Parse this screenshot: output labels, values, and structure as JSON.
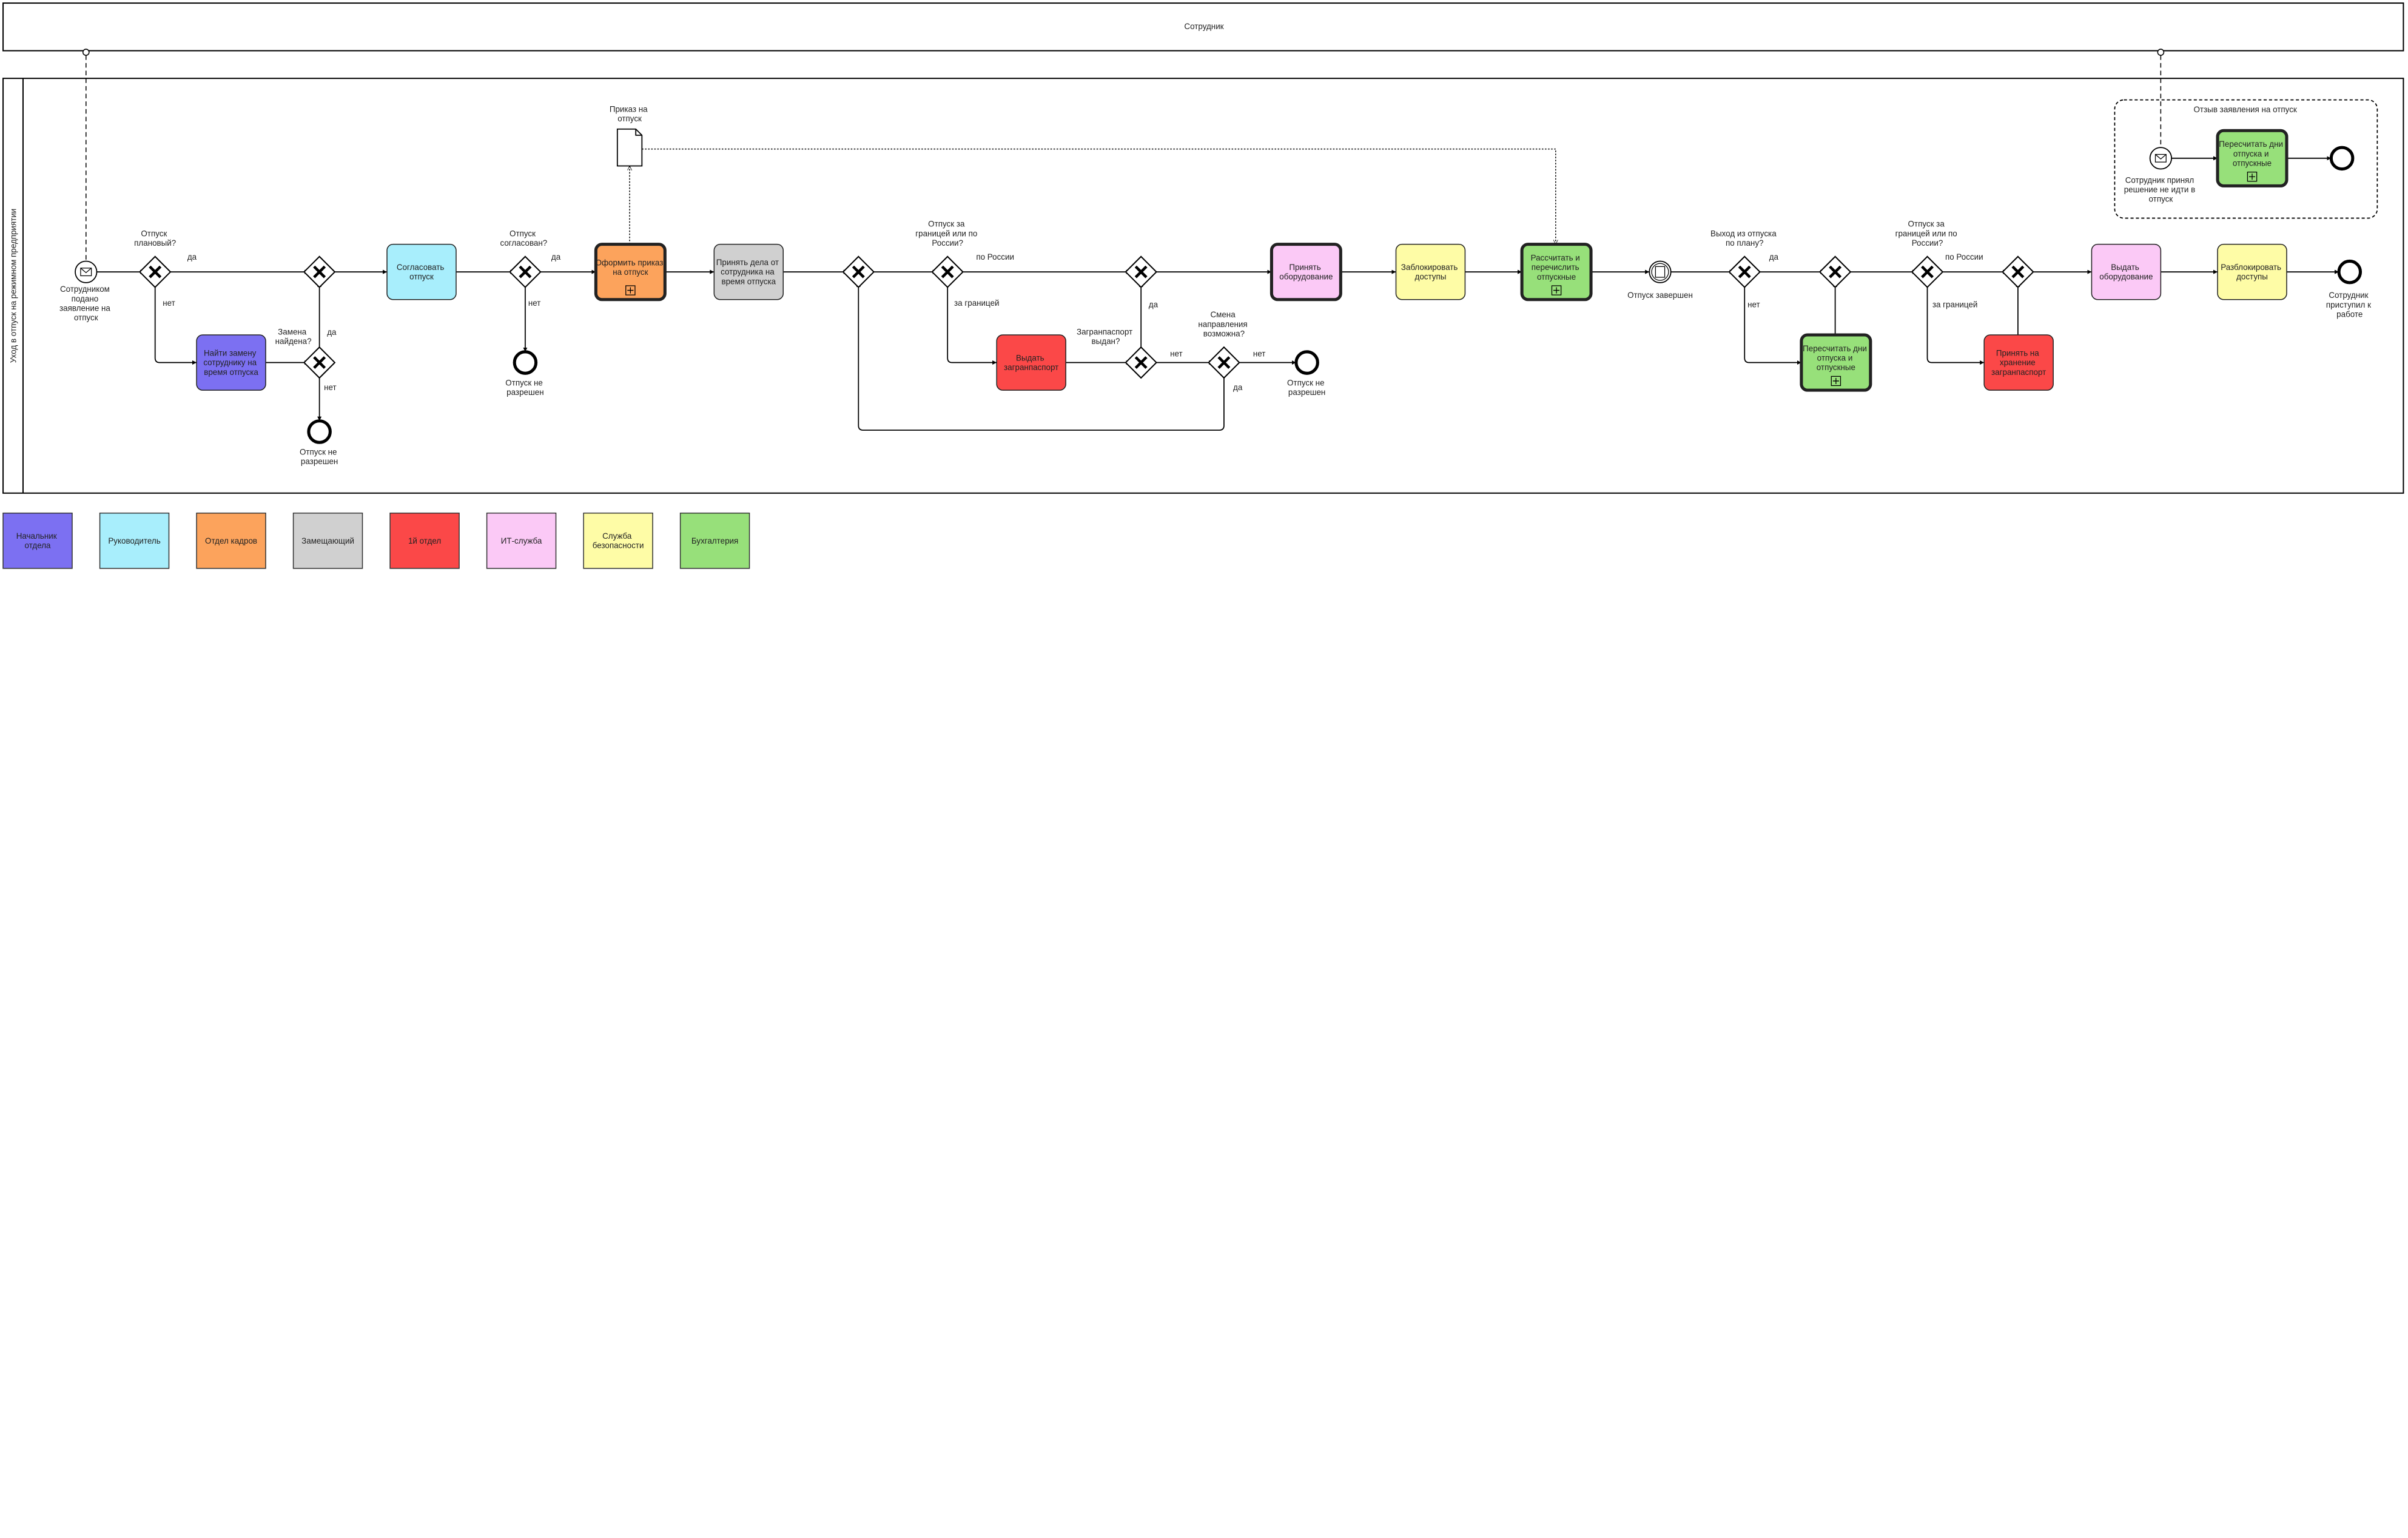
{
  "pools": {
    "top": "Сотрудник",
    "main": "Уход в отпуск на режимном предприятии"
  },
  "data_object": "Приказ на отпуск",
  "subprocess": "Отзыв заявления на отпуск",
  "tasks": [
    "Найти замену сотруднику на время отпуска",
    "Согласовать отпуск",
    "Оформить приказ на отпуск",
    "Принять дела от сотрудника на время отпуска",
    "Выдать загранпаспорт",
    "Принять оборудование",
    "Заблокировать доступы",
    "Рассчитать и перечислить отпускные",
    "Пересчитать дни отпуска и отпускные",
    "Принять на хранение загранпаспорт",
    "Выдать оборудование",
    "Разблокировать доступы",
    "Пересчитать дни отпуска и отпускные"
  ],
  "events": [
    "Сотрудником подано заявление на отпуск",
    "Отпуск не разрешен",
    "Отпуск не разрешен",
    "Отпуск не разрешен",
    "Отпуск завершен",
    "Сотрудник приступил к работе",
    "Сотрудник принял решение не идти в отпуск"
  ],
  "gateway_labels": [
    "Отпуск плановый?",
    "Замена найдена?",
    "Отпуск согласован?",
    "Отпуск за границей или по России?",
    "Загранпаспорт выдан?",
    "Смена направления возможна?",
    "Выход из отпуска по плану?",
    "Отпуск за границей или по России?"
  ],
  "edge_labels": [
    "да",
    "нет",
    "да",
    "нет",
    "да",
    "нет",
    "по России",
    "за границей",
    "да",
    "нет",
    "нет",
    "да",
    "да",
    "нет",
    "по России",
    "за границей"
  ],
  "legend": [
    "Начальник отдела",
    "Руководитель",
    "Отдел кадров",
    "Замещающий",
    "1й отдел",
    "ИТ-служба",
    "Служба безопасности",
    "Бухгалтерия"
  ]
}
